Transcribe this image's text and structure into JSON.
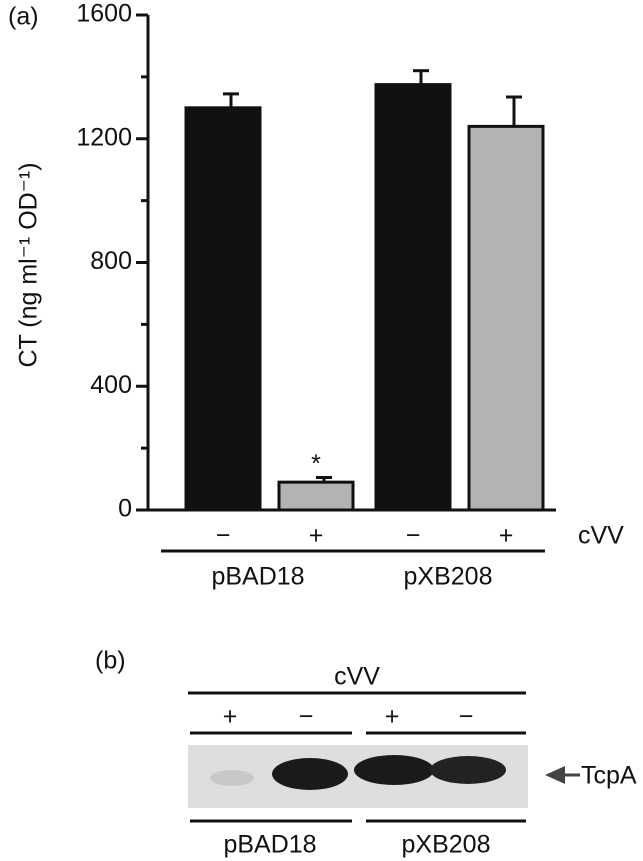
{
  "chart_data": {
    "type": "bar",
    "panel_label": "(a)",
    "y_label": "CT (ng ml⁻¹ OD⁻¹)",
    "categories": [
      "−",
      "+",
      "−",
      "+"
    ],
    "category_axis_label": "cVV",
    "groups": [
      "pBAD18",
      "pXB208"
    ],
    "series": [
      {
        "values": [
          1300,
          90,
          1375,
          1240
        ],
        "errors": [
          45,
          15,
          45,
          95
        ],
        "colors": [
          "#111111",
          "#b3b3b3",
          "#111111",
          "#b3b3b3"
        ]
      }
    ],
    "annotations": [
      {
        "text": "*",
        "category": 1
      }
    ],
    "ylim": [
      0,
      1600
    ],
    "yticks": [
      0,
      400,
      800,
      1200,
      1600
    ]
  },
  "blot": {
    "panel_label": "(b)",
    "header": "cVV",
    "lanes": [
      "+",
      "−",
      "+",
      "−"
    ],
    "groups": [
      "pBAD18",
      "pXB208"
    ],
    "band_label": "TcpA"
  }
}
